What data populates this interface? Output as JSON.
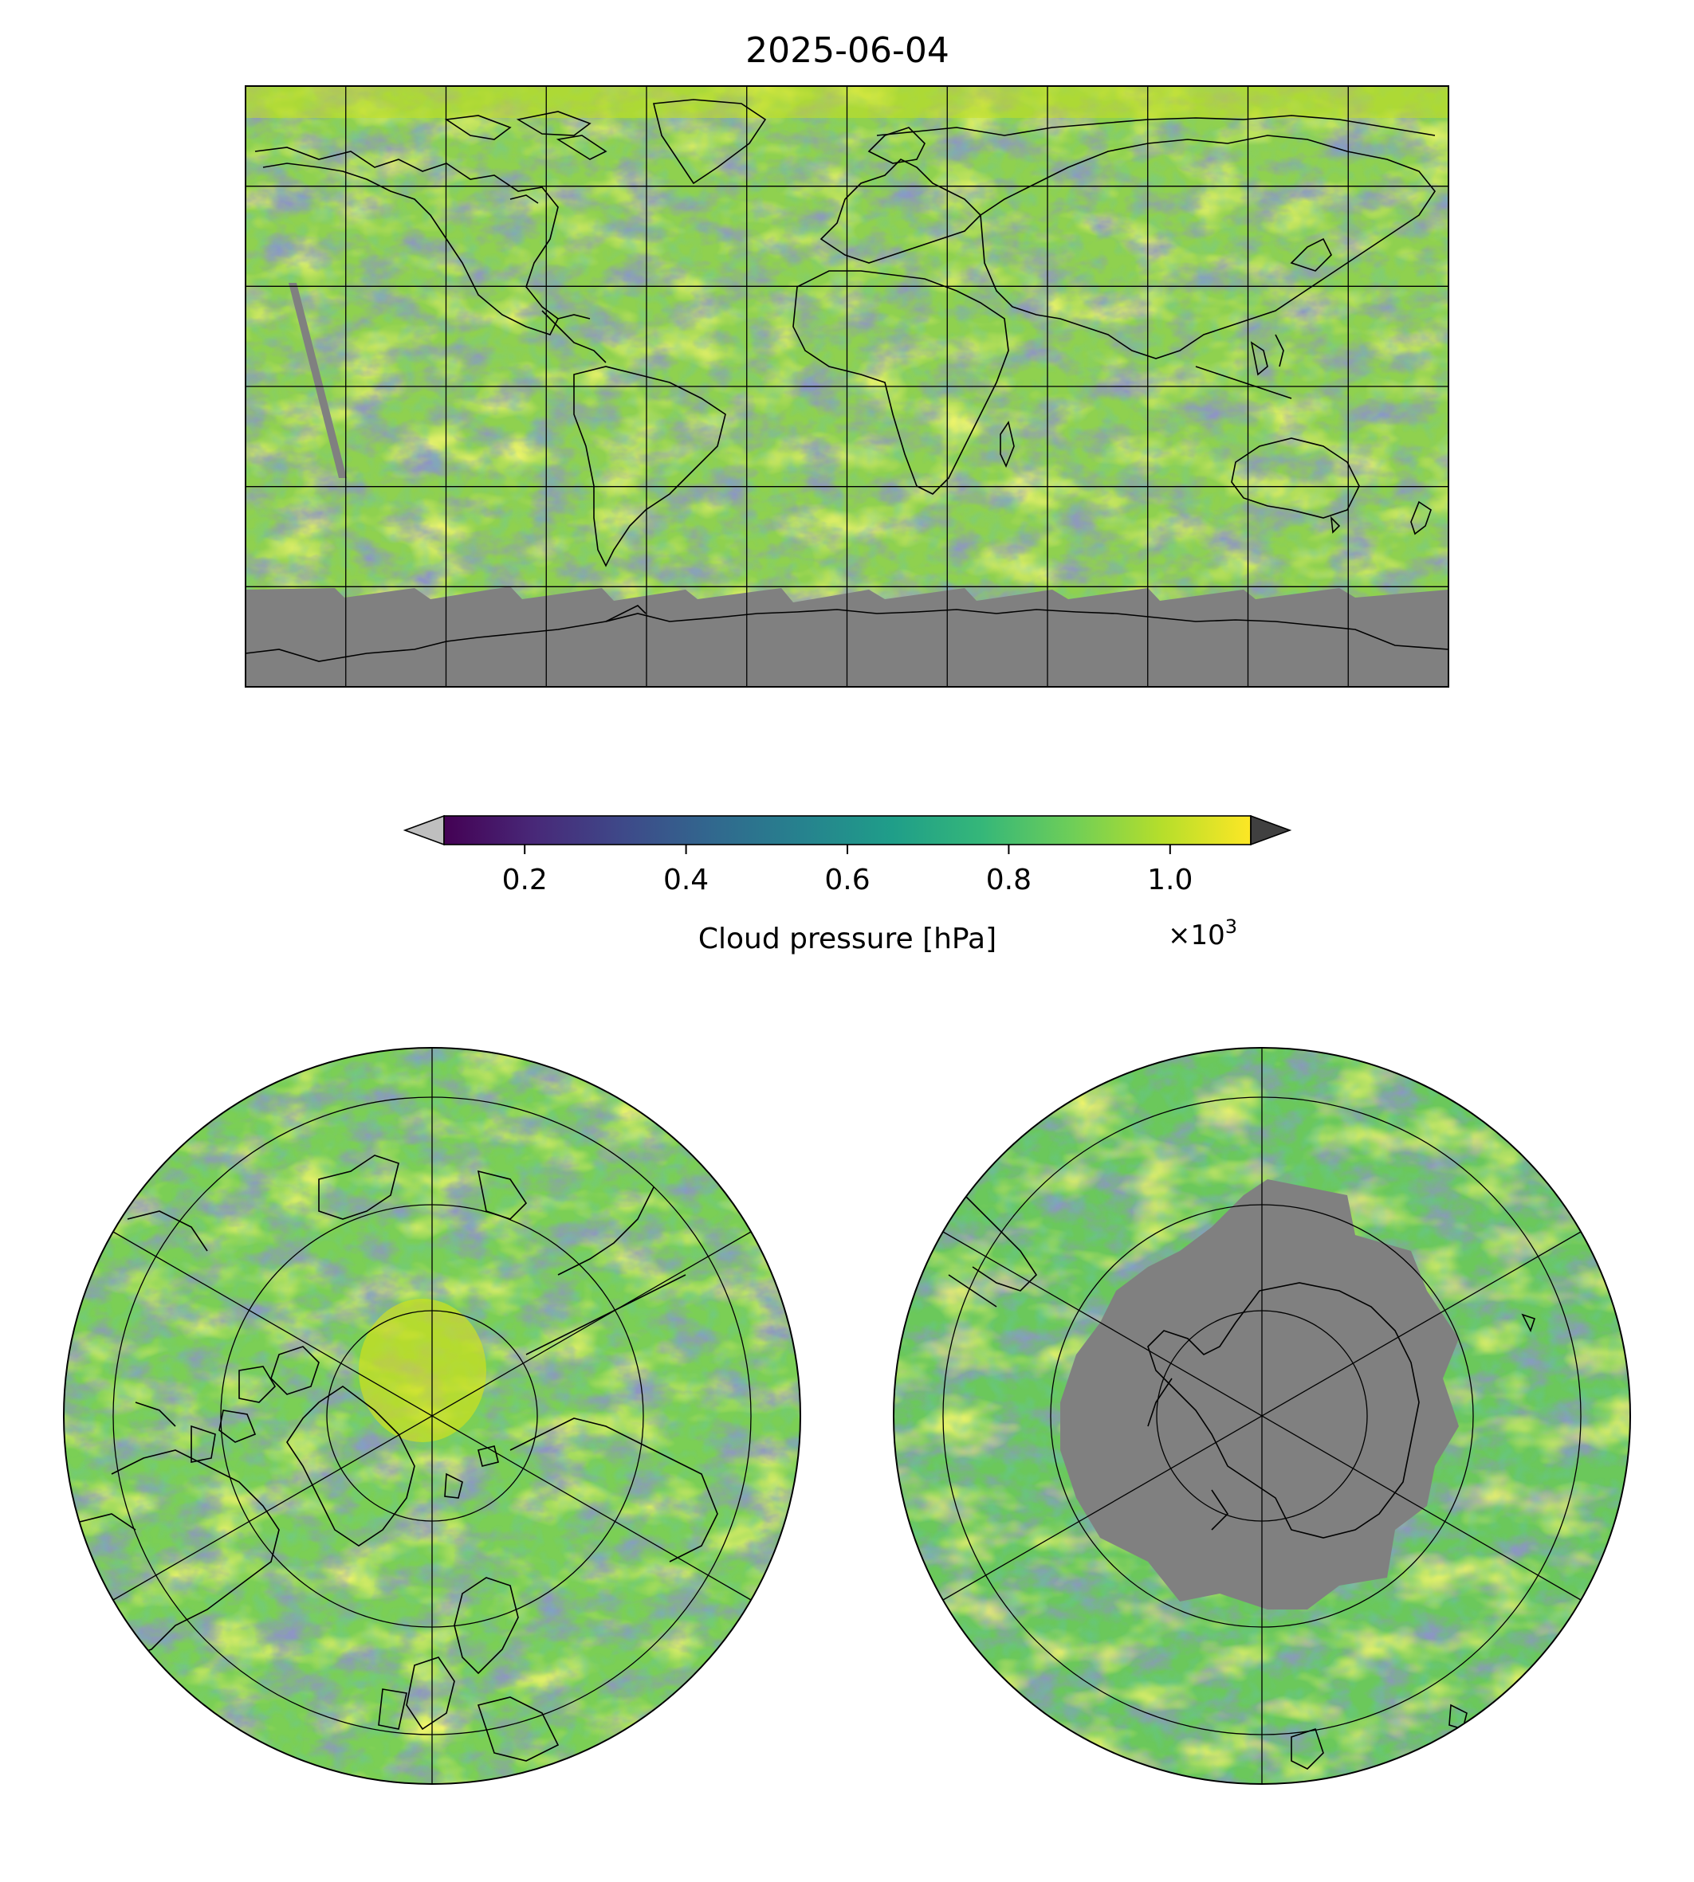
{
  "figure": {
    "title": "2025-06-04"
  },
  "colorbar": {
    "label": "Cloud pressure [hPa]",
    "multiplier_base": "×10",
    "multiplier_exp": "3",
    "ticks": [
      "0.2",
      "0.4",
      "0.6",
      "0.8",
      "1.0"
    ],
    "tick_values": [
      0.2,
      0.4,
      0.6,
      0.8,
      1.0
    ],
    "vmin": 0.1,
    "vmax": 1.1,
    "extend": "both",
    "under_color": "#bfbfbf",
    "over_color": "#404040",
    "colormap": [
      "#440154",
      "#482878",
      "#3e4989",
      "#31688e",
      "#26828e",
      "#1f9e89",
      "#35b779",
      "#6ece58",
      "#b5de2b",
      "#fde725"
    ]
  },
  "panels": {
    "global": {
      "projection": "plate-carree"
    },
    "north_polar": {
      "projection": "north-polar-stereographic"
    },
    "south_polar": {
      "projection": "south-polar-stereographic"
    }
  },
  "colors": {
    "no_data": "#808080",
    "coastline": "#000000",
    "gridline": "#000000"
  }
}
